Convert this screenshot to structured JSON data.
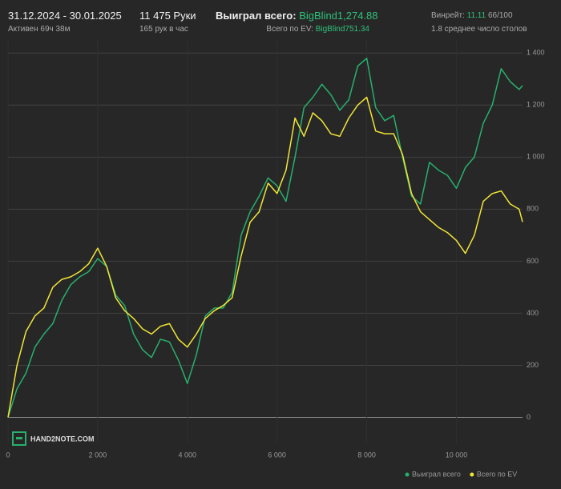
{
  "header": {
    "date_range": "31.12.2024 - 30.01.2025",
    "active": "Активен 69ч 38м",
    "hands": "11 475 Руки",
    "hands_per_hour": "165 рук в час",
    "won_label": "Выиграл всего:",
    "won_value": "BigBlind1,274.88",
    "ev_label": "Всего по EV:",
    "ev_value": "BigBlind751.34",
    "winrate_label": "Винрейт:",
    "winrate_value": "11.11",
    "winrate_unit": "66/100",
    "tables": "1.8 среднее число столов"
  },
  "watermark": "HAND2NOTE.COM",
  "chart_data": {
    "type": "line",
    "x": [
      0,
      200,
      400,
      600,
      800,
      1000,
      1200,
      1400,
      1600,
      1800,
      2000,
      2200,
      2400,
      2600,
      2800,
      3000,
      3200,
      3400,
      3600,
      3800,
      4000,
      4200,
      4400,
      4600,
      4800,
      5000,
      5200,
      5400,
      5600,
      5800,
      6000,
      6200,
      6400,
      6600,
      6800,
      7000,
      7200,
      7400,
      7600,
      7800,
      8000,
      8200,
      8400,
      8600,
      8800,
      9000,
      9200,
      9400,
      9600,
      9800,
      10000,
      10200,
      10400,
      10600,
      10800,
      11000,
      11200,
      11400,
      11475
    ],
    "series": [
      {
        "name": "Выиграл всего",
        "color": "#27b06e",
        "values": [
          0,
          110,
          170,
          270,
          320,
          360,
          450,
          510,
          540,
          560,
          610,
          580,
          470,
          430,
          320,
          260,
          230,
          300,
          290,
          220,
          130,
          240,
          390,
          420,
          420,
          480,
          700,
          790,
          850,
          920,
          890,
          830,
          1000,
          1190,
          1230,
          1280,
          1240,
          1180,
          1220,
          1350,
          1380,
          1190,
          1140,
          1160,
          1000,
          850,
          820,
          980,
          950,
          930,
          880,
          960,
          1000,
          1130,
          1200,
          1340,
          1290,
          1260,
          1275
        ]
      },
      {
        "name": "Всего по EV",
        "color": "#f0e536",
        "values": [
          0,
          200,
          330,
          390,
          420,
          500,
          530,
          540,
          560,
          590,
          650,
          580,
          460,
          410,
          380,
          340,
          320,
          350,
          360,
          300,
          270,
          320,
          380,
          410,
          430,
          460,
          620,
          750,
          790,
          900,
          860,
          950,
          1150,
          1080,
          1170,
          1140,
          1090,
          1080,
          1150,
          1200,
          1230,
          1100,
          1090,
          1090,
          1010,
          860,
          790,
          760,
          730,
          710,
          680,
          630,
          700,
          830,
          860,
          870,
          820,
          800,
          751
        ]
      }
    ],
    "xlim": [
      0,
      11475
    ],
    "ylim": [
      -100,
      1450
    ],
    "xticks": [
      0,
      {
        "value": 2000,
        "label": "2 000"
      },
      {
        "value": 4000,
        "label": "4 000"
      },
      {
        "value": 6000,
        "label": "6 000"
      },
      {
        "value": 8000,
        "label": "8 000"
      },
      {
        "value": 10000,
        "label": "10 000"
      }
    ],
    "yticks": [
      0,
      200,
      400,
      600,
      800,
      {
        "value": 1000,
        "label": "1 000"
      },
      {
        "value": 1200,
        "label": "1 200"
      },
      {
        "value": 1400,
        "label": "1 400"
      }
    ],
    "grid": true,
    "legend": "bottom-right"
  }
}
